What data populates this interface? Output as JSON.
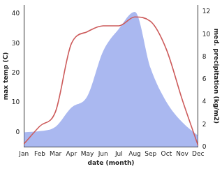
{
  "chart_data": {
    "type": "line",
    "categories": [
      "Jan",
      "Feb",
      "Mar",
      "Apr",
      "May",
      "Jun",
      "Jul",
      "Aug",
      "Sep",
      "Oct",
      "Nov",
      "Dec"
    ],
    "xlabel": "date (month)",
    "ylabel": "max temp (C)",
    "y2label": "med. precipitation (kg/m2)",
    "ylim": [
      -5,
      43
    ],
    "yticks": [
      0,
      10,
      20,
      30,
      40
    ],
    "y2lim": [
      0,
      12.6
    ],
    "y2ticks": [
      0,
      2,
      4,
      6,
      8,
      10,
      12
    ],
    "grid": false,
    "series": [
      {
        "type": "line",
        "color": "#cd5c5c",
        "axis": "y",
        "values": [
          -4,
          2,
          7,
          30,
          34,
          36,
          36,
          39,
          37.5,
          28,
          11,
          -4.5
        ]
      },
      {
        "type": "area",
        "color": "#aab8f0",
        "axis": "y2",
        "values": [
          1.3,
          1.4,
          1.8,
          3.5,
          4.5,
          8.5,
          10.5,
          12,
          7,
          4,
          2.2,
          1
        ]
      }
    ]
  }
}
